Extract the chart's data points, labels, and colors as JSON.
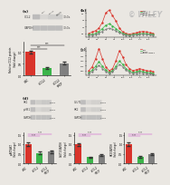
{
  "bg_color": "#eae7e2",
  "panel_a": {
    "bar_values": [
      1.0,
      0.32,
      0.52
    ],
    "bar_colors": [
      "#d9342b",
      "#3cb54a",
      "#808080"
    ],
    "bar_errors": [
      0.07,
      0.03,
      0.05
    ],
    "ylabel": "Relative CCL2 protein\n(fold change)",
    "ylim": [
      0,
      1.45
    ],
    "yticks": [
      0.0,
      0.5,
      1.0
    ]
  },
  "panel_d_left": {
    "bar_values": [
      1.0,
      0.55,
      0.62
    ],
    "bar_errors": [
      0.1,
      0.06,
      0.07
    ],
    "bar_colors": [
      "#d9342b",
      "#3cb54a",
      "#808080"
    ],
    "ylabel": "p-AKT/AKT\n(fold change)",
    "ylim": [
      0,
      1.6
    ],
    "yticks": [
      0.0,
      0.5,
      1.0,
      1.5
    ]
  },
  "panel_d_mid": {
    "bar_values": [
      1.0,
      0.32,
      0.45
    ],
    "bar_errors": [
      0.07,
      0.04,
      0.05
    ],
    "bar_colors": [
      "#d9342b",
      "#3cb54a",
      "#808080"
    ],
    "ylabel": "GLUT1/GAPDH\n(fold change)",
    "ylim": [
      0,
      1.6
    ],
    "yticks": [
      0.0,
      0.5,
      1.0,
      1.5
    ]
  },
  "panel_d_right": {
    "bar_values": [
      1.0,
      0.35,
      0.48
    ],
    "bar_errors": [
      0.08,
      0.04,
      0.05
    ],
    "bar_colors": [
      "#d9342b",
      "#3cb54a",
      "#808080"
    ],
    "ylabel": "HK2/GAPDH\n(fold change)",
    "ylim": [
      0,
      1.6
    ],
    "yticks": [
      0.0,
      0.5,
      1.0,
      1.5
    ]
  },
  "wb_color": "#b8b8b8",
  "wb_color2": "#d0d0d0",
  "wiley_text": "© WILEY",
  "line_colors": [
    "#d9342b",
    "#3cb54a",
    "#808080"
  ],
  "line_b1": [
    0.5,
    0.6,
    0.7,
    0.9,
    1.3,
    2.0,
    2.2,
    1.8,
    1.4,
    0.9,
    0.6,
    0.5,
    0.45,
    0.5,
    0.55,
    0.6,
    0.65,
    0.6,
    0.55,
    0.5
  ],
  "line_b2": [
    0.4,
    0.45,
    0.5,
    0.65,
    0.85,
    1.1,
    1.2,
    1.05,
    0.85,
    0.65,
    0.5,
    0.42,
    0.38,
    0.42,
    0.45,
    0.48,
    0.5,
    0.48,
    0.45,
    0.42
  ],
  "line_b3": [
    0.35,
    0.38,
    0.42,
    0.52,
    0.65,
    0.8,
    0.88,
    0.8,
    0.68,
    0.55,
    0.45,
    0.38,
    0.34,
    0.38,
    0.4,
    0.42,
    0.44,
    0.42,
    0.4,
    0.37
  ],
  "line_c1": [
    0.5,
    0.7,
    1.1,
    1.6,
    1.1,
    0.7,
    0.5,
    0.6,
    1.0,
    1.5,
    1.2,
    0.8,
    0.6,
    0.5,
    0.55,
    0.6,
    0.55,
    0.5,
    0.48,
    0.45
  ],
  "line_c2": [
    0.4,
    0.52,
    0.72,
    0.95,
    0.72,
    0.52,
    0.42,
    0.5,
    0.72,
    0.98,
    0.82,
    0.6,
    0.48,
    0.42,
    0.45,
    0.48,
    0.45,
    0.42,
    0.4,
    0.38
  ],
  "line_c3": [
    0.35,
    0.44,
    0.6,
    0.78,
    0.6,
    0.45,
    0.36,
    0.44,
    0.62,
    0.82,
    0.7,
    0.52,
    0.42,
    0.36,
    0.38,
    0.42,
    0.38,
    0.36,
    0.34,
    0.32
  ],
  "xtick_labels": [
    "siNC",
    "siCCL2",
    "siCCL2\n+MCP"
  ]
}
